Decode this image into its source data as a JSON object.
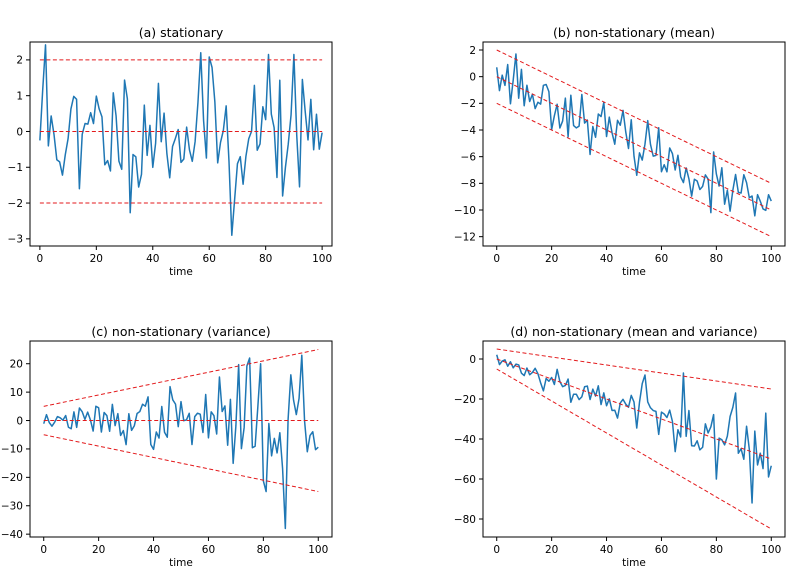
{
  "chart_data": [
    {
      "type": "line",
      "title": "(a) stationary",
      "xlabel": "time",
      "xlim": [
        -3.5,
        103.5
      ],
      "ylim": [
        -3.2,
        2.5
      ],
      "xticks": [
        0,
        20,
        40,
        60,
        80,
        100
      ],
      "yticks": [
        -3,
        -2,
        -1,
        0,
        1,
        2
      ],
      "seed": 11,
      "mean": {
        "start": 0,
        "end": 0
      },
      "std": {
        "start": 0.9,
        "end": 0.9
      },
      "clip": [
        -3.0,
        2.4
      ],
      "spikes": [
        [
          2,
          2.42
        ],
        [
          7,
          -0.85
        ],
        [
          14,
          -1.6
        ],
        [
          57,
          2.2
        ],
        [
          68,
          -2.9
        ],
        [
          69,
          -1.9
        ],
        [
          81,
          2.15
        ]
      ],
      "reference_lines": [
        {
          "name": "upper",
          "start": 2,
          "end": 2
        },
        {
          "name": "mean",
          "start": 0,
          "end": 0
        },
        {
          "name": "lower",
          "start": -2,
          "end": -2
        }
      ]
    },
    {
      "type": "line",
      "title": "(b) non-stationary (mean)",
      "xlabel": "time",
      "xlim": [
        -5,
        105
      ],
      "ylim": [
        -12.7,
        2.6
      ],
      "xticks": [
        0,
        20,
        40,
        60,
        80,
        100
      ],
      "yticks": [
        -12,
        -10,
        -8,
        -6,
        -4,
        -2,
        0,
        2
      ],
      "seed": 23,
      "mean": {
        "start": 0,
        "end": -10
      },
      "std": {
        "start": 0.9,
        "end": 0.9
      },
      "clip": [
        -11.8,
        1.8
      ],
      "spikes": [
        [
          0,
          0.7
        ],
        [
          7,
          1.7
        ],
        [
          55,
          -3.3
        ],
        [
          78,
          -10.2
        ]
      ],
      "reference_lines": [
        {
          "name": "upper",
          "start": 2,
          "end": -8
        },
        {
          "name": "mean",
          "start": 0,
          "end": -10
        },
        {
          "name": "lower",
          "start": -2,
          "end": -12
        }
      ]
    },
    {
      "type": "line",
      "title": "(c) non-stationary (variance)",
      "xlabel": "time",
      "xlim": [
        -5,
        105
      ],
      "ylim": [
        -41,
        28
      ],
      "xticks": [
        0,
        20,
        40,
        60,
        80,
        100
      ],
      "yticks": [
        -40,
        -30,
        -20,
        -10,
        0,
        10,
        20
      ],
      "seed": 37,
      "mean": {
        "start": 0,
        "end": 0
      },
      "std": {
        "start": 1,
        "end": 11
      },
      "clip": [
        -38,
        24
      ],
      "spikes": [
        [
          88,
          -38
        ],
        [
          94,
          23
        ],
        [
          81,
          -25
        ],
        [
          75,
          22
        ],
        [
          79,
          20
        ]
      ],
      "reference_lines": [
        {
          "name": "upper",
          "start": 5,
          "end": 25
        },
        {
          "name": "mean",
          "start": 0,
          "end": 0
        },
        {
          "name": "lower",
          "start": -5,
          "end": -25
        }
      ]
    },
    {
      "type": "line",
      "title": "(d) non-stationary (mean and variance)",
      "xlabel": "time",
      "xlim": [
        -5,
        105
      ],
      "ylim": [
        -89,
        9
      ],
      "xticks": [
        0,
        20,
        40,
        60,
        80,
        100
      ],
      "yticks": [
        -80,
        -60,
        -40,
        -20,
        0
      ],
      "seed": 53,
      "mean": {
        "start": 0,
        "end": -50
      },
      "std": {
        "start": 1.5,
        "end": 11
      },
      "clip": [
        -84,
        4
      ],
      "spikes": [
        [
          68,
          -7
        ],
        [
          54,
          -8
        ],
        [
          93,
          -72
        ],
        [
          99,
          -59
        ],
        [
          87,
          -17
        ]
      ],
      "reference_lines": [
        {
          "name": "upper",
          "start": 5,
          "end": -15
        },
        {
          "name": "mean",
          "start": 0,
          "end": -50
        },
        {
          "name": "lower",
          "start": -5,
          "end": -85
        }
      ]
    }
  ],
  "colors": {
    "series": "#1f77b4",
    "reference": "#e31a1c",
    "axis": "#000000"
  }
}
